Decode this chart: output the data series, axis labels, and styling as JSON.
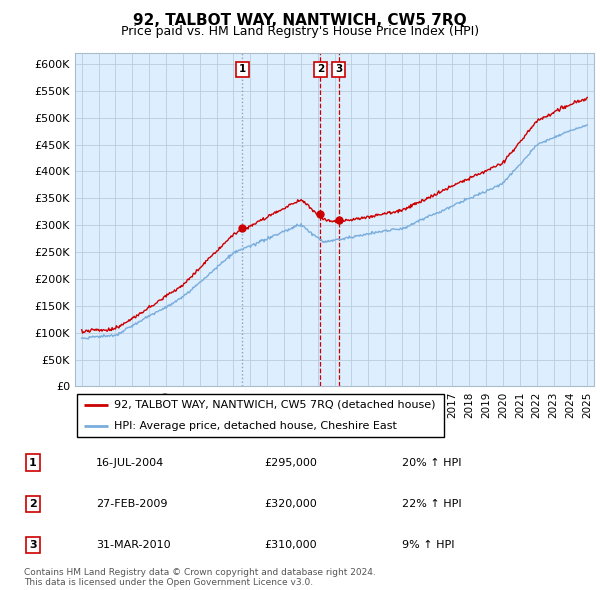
{
  "title": "92, TALBOT WAY, NANTWICH, CW5 7RQ",
  "subtitle": "Price paid vs. HM Land Registry's House Price Index (HPI)",
  "red_label": "92, TALBOT WAY, NANTWICH, CW5 7RQ (detached house)",
  "blue_label": "HPI: Average price, detached house, Cheshire East",
  "footer_line1": "Contains HM Land Registry data © Crown copyright and database right 2024.",
  "footer_line2": "This data is licensed under the Open Government Licence v3.0.",
  "transactions": [
    {
      "num": 1,
      "date": "16-JUL-2004",
      "price": "£295,000",
      "change": "20% ↑ HPI"
    },
    {
      "num": 2,
      "date": "27-FEB-2009",
      "price": "£320,000",
      "change": "22% ↑ HPI"
    },
    {
      "num": 3,
      "date": "31-MAR-2010",
      "price": "£310,000",
      "change": "9% ↑ HPI"
    }
  ],
  "red_color": "#cc0000",
  "blue_color": "#7aaddb",
  "background_color": "#ddeeff",
  "grid_color": "#bbccdd",
  "ylim": [
    0,
    620000
  ],
  "yticks": [
    0,
    50000,
    100000,
    150000,
    200000,
    250000,
    300000,
    350000,
    400000,
    450000,
    500000,
    550000,
    600000
  ],
  "x_start_year": 1995,
  "x_end_year": 2025,
  "transaction_years": [
    2004.54,
    2009.16,
    2010.25
  ],
  "transaction_prices": [
    295000,
    320000,
    310000
  ],
  "vline_color": "#cc0000",
  "vline1_color": "#aaaacc",
  "marker_labels": [
    "1",
    "2",
    "3"
  ]
}
